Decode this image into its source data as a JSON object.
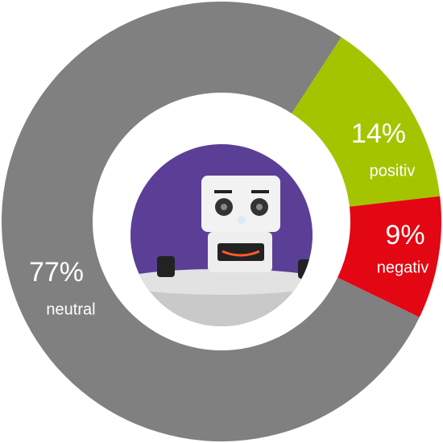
{
  "chart_data": {
    "type": "donut",
    "categories": [
      "positiv",
      "negativ",
      "neutral"
    ],
    "values": [
      14,
      9,
      77
    ],
    "value_labels": [
      "14%",
      "9%",
      "77%"
    ],
    "colors": [
      "#a5c400",
      "#e30613",
      "#808080"
    ]
  }
}
